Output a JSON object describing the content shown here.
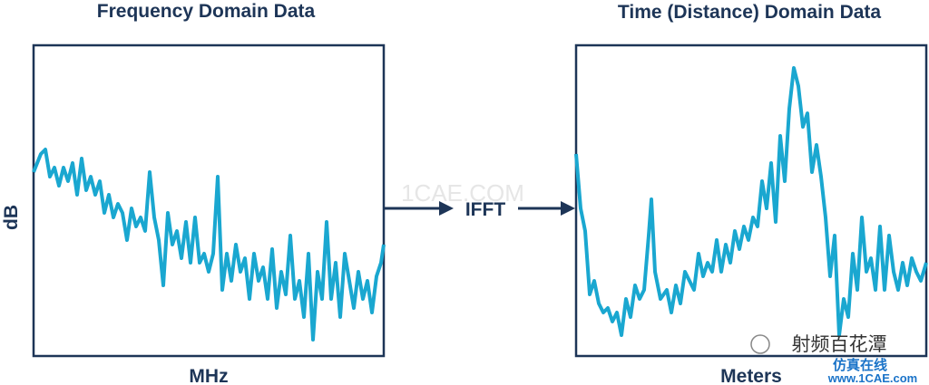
{
  "left_panel": {
    "title": "Frequency Domain Data",
    "y_label": "dB",
    "x_label": "MHz"
  },
  "arrow_label": "IFFT",
  "right_panel": {
    "title": "Time (Distance) Domain Data",
    "x_label": "Meters"
  },
  "watermarks": [
    "1CAE.COM",
    "射频百花潭",
    "仿真在线",
    "www.1CAE.com"
  ]
}
